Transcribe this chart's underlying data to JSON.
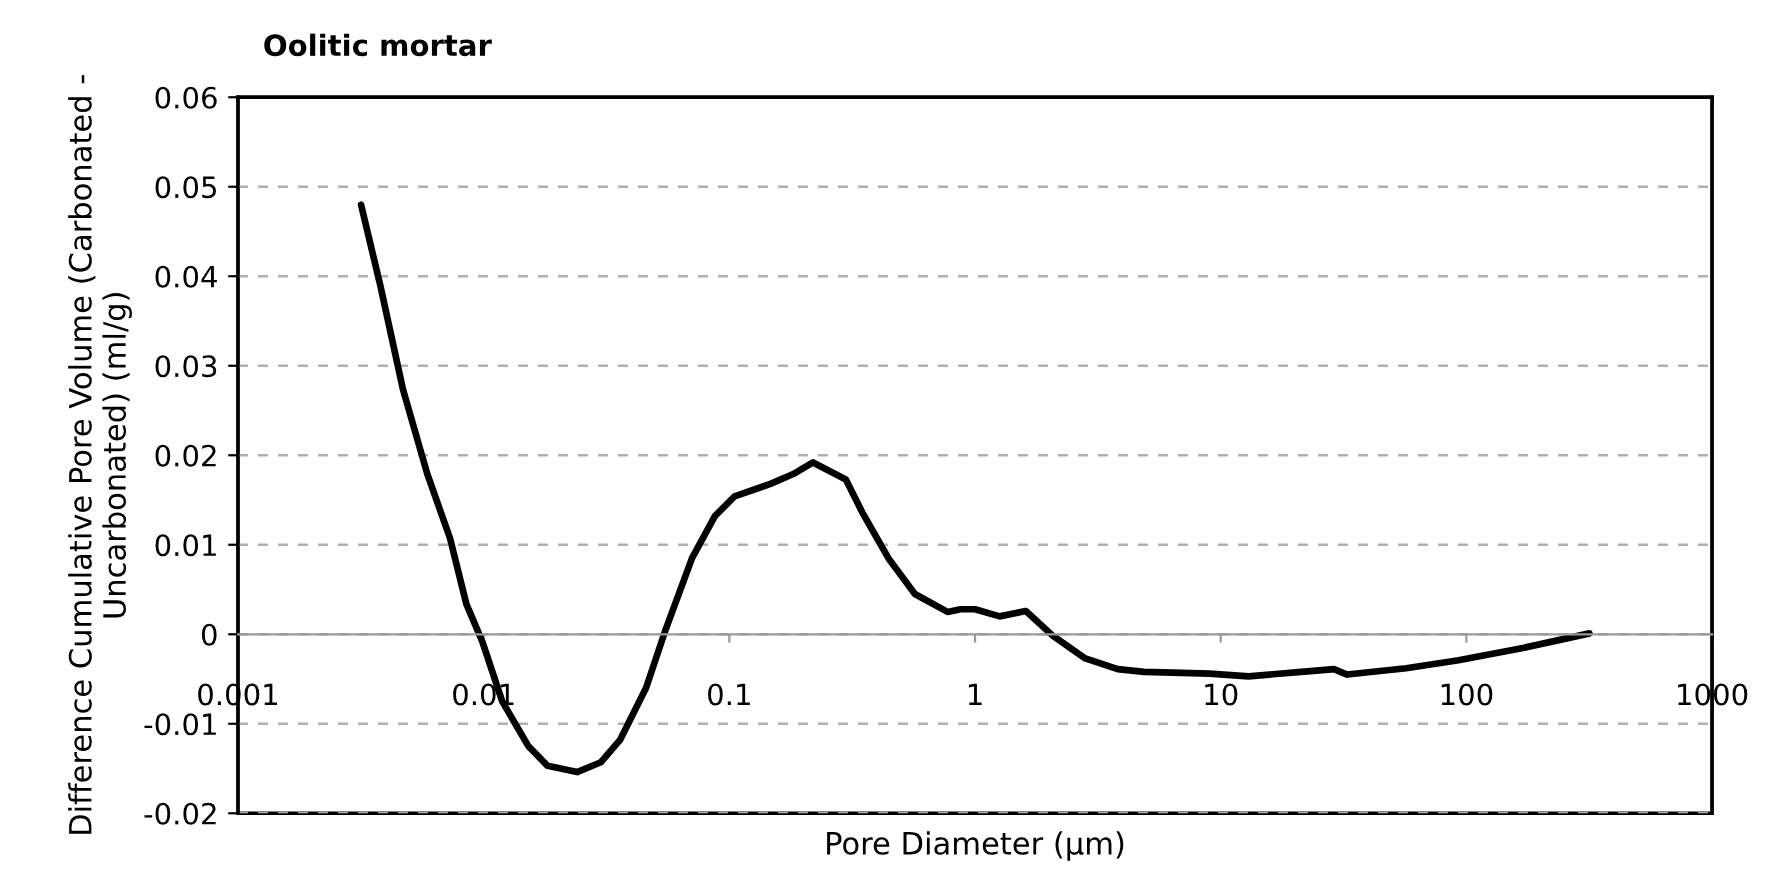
{
  "chart_data": {
    "type": "line",
    "title": "Oolitic mortar",
    "xlabel": "Pore Diameter (μm)",
    "ylabel": "Difference Cumulative Pore Volume (Carbonated -\nUncarbonated) (ml/g)",
    "log": "x",
    "grid": "y",
    "marker": "none",
    "line_style": "solid",
    "xlim": [
      0.001,
      1000
    ],
    "xticks": [
      0.001,
      0.01,
      0.1,
      1,
      10,
      100,
      1000
    ],
    "ylim": [
      -0.02,
      0.06
    ],
    "yticks": [
      {
        "value": -0.02,
        "label": "-0.02"
      },
      {
        "value": -0.01,
        "label": "-0.01"
      },
      0,
      0.01,
      0.02,
      0.03,
      0.04,
      0.05,
      0.06
    ],
    "series": [
      {
        "color": "#000000",
        "x": [
          0.00317,
          0.0038,
          0.0047,
          0.0059,
          0.0073,
          0.0085,
          0.0099,
          0.0119,
          0.0152,
          0.0182,
          0.024,
          0.03,
          0.0359,
          0.0458,
          0.055,
          0.0705,
          0.0873,
          0.105,
          0.147,
          0.182,
          0.219,
          0.298,
          0.348,
          0.444,
          0.569,
          0.773,
          0.873,
          1.0,
          1.26,
          1.61,
          2.06,
          2.81,
          3.81,
          4.87,
          9.0,
          13.0,
          21.3,
          28.9,
          32.7,
          56.9,
          92.9,
          172,
          317
        ],
        "values": [
          0.048,
          0.0389,
          0.0273,
          0.0179,
          0.0107,
          0.0034,
          -0.0009,
          -0.0075,
          -0.0125,
          -0.0147,
          -0.0154,
          -0.0143,
          -0.0118,
          -0.006,
          0.0005,
          0.0085,
          0.0132,
          0.0154,
          0.0168,
          0.0179,
          0.0192,
          0.0173,
          0.0136,
          0.0085,
          0.0045,
          0.0025,
          0.0028,
          0.0028,
          0.002,
          0.0026,
          -0.0001,
          -0.0027,
          -0.0039,
          -0.0042,
          -0.0044,
          -0.0047,
          -0.0042,
          -0.0039,
          -0.0045,
          -0.0038,
          -0.0029,
          -0.0015,
          0.0001
        ]
      }
    ]
  }
}
